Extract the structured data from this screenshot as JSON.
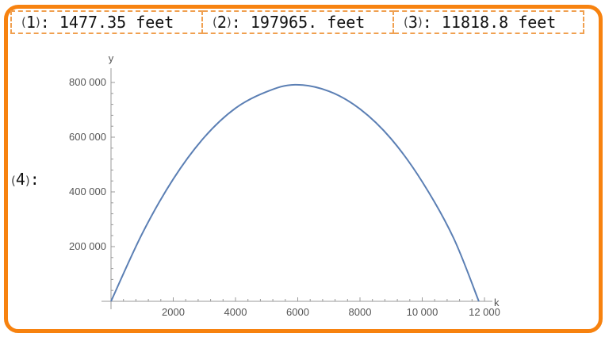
{
  "results": [
    {
      "index": "1",
      "value": "1477.35 feet"
    },
    {
      "index": "2",
      "value": "197965. feet"
    },
    {
      "index": "3",
      "value": "11818.8 feet"
    }
  ],
  "plot_label": {
    "index": "4"
  },
  "colors": {
    "frame": "#f7820f",
    "dashed_border": "#f0a050",
    "curve": "#5b7fb4",
    "axis": "#999999"
  },
  "chart_data": {
    "type": "line",
    "xlabel": "k",
    "ylabel": "y",
    "xlim": [
      0,
      12000
    ],
    "ylim": [
      0,
      800000
    ],
    "x_ticks": [
      "2000",
      "4000",
      "6000",
      "8000",
      "10 000",
      "12 000"
    ],
    "y_ticks": [
      "200 000",
      "400 000",
      "600 000",
      "800 000"
    ],
    "series": [
      {
        "x": [
          0,
          1000,
          2000,
          3000,
          4000,
          5000,
          5909,
          7000,
          8000,
          9000,
          10000,
          11000,
          11818.8
        ],
        "y": [
          0,
          247000,
          447000,
          600000,
          706000,
          766000,
          791800,
          768000,
          703000,
          594000,
          437000,
          233000,
          0
        ]
      }
    ]
  }
}
